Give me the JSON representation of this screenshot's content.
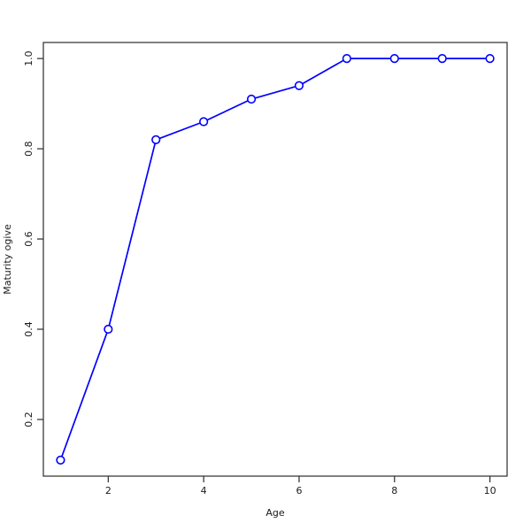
{
  "chart_data": {
    "type": "line",
    "title": "",
    "xlabel": "Age",
    "ylabel": "Maturity ogive",
    "x": [
      1,
      2,
      3,
      4,
      5,
      6,
      7,
      8,
      9,
      10
    ],
    "series": [
      {
        "name": "maturity-ogive",
        "values": [
          0.11,
          0.4,
          0.82,
          0.86,
          0.91,
          0.94,
          1.0,
          1.0,
          1.0,
          1.0
        ]
      }
    ],
    "x_ticks": [
      2,
      4,
      6,
      8,
      10
    ],
    "x_tick_labels": [
      "2",
      "4",
      "6",
      "8",
      "10"
    ],
    "y_ticks": [
      0.2,
      0.4,
      0.6,
      0.8,
      1.0
    ],
    "y_tick_labels": [
      "0.2",
      "0.4",
      "0.6",
      "0.8",
      "1.0"
    ],
    "xlim": [
      0.64,
      10.36
    ],
    "ylim": [
      0.0744,
      1.0356
    ],
    "grid": "off",
    "legend": "none",
    "marker": "open-circle",
    "line_color": "#0000ff",
    "marker_fill": "#ffffff",
    "axis_color": "#2b2b2b",
    "text_color": "#1a1a1a",
    "background_color": "#ffffff"
  }
}
